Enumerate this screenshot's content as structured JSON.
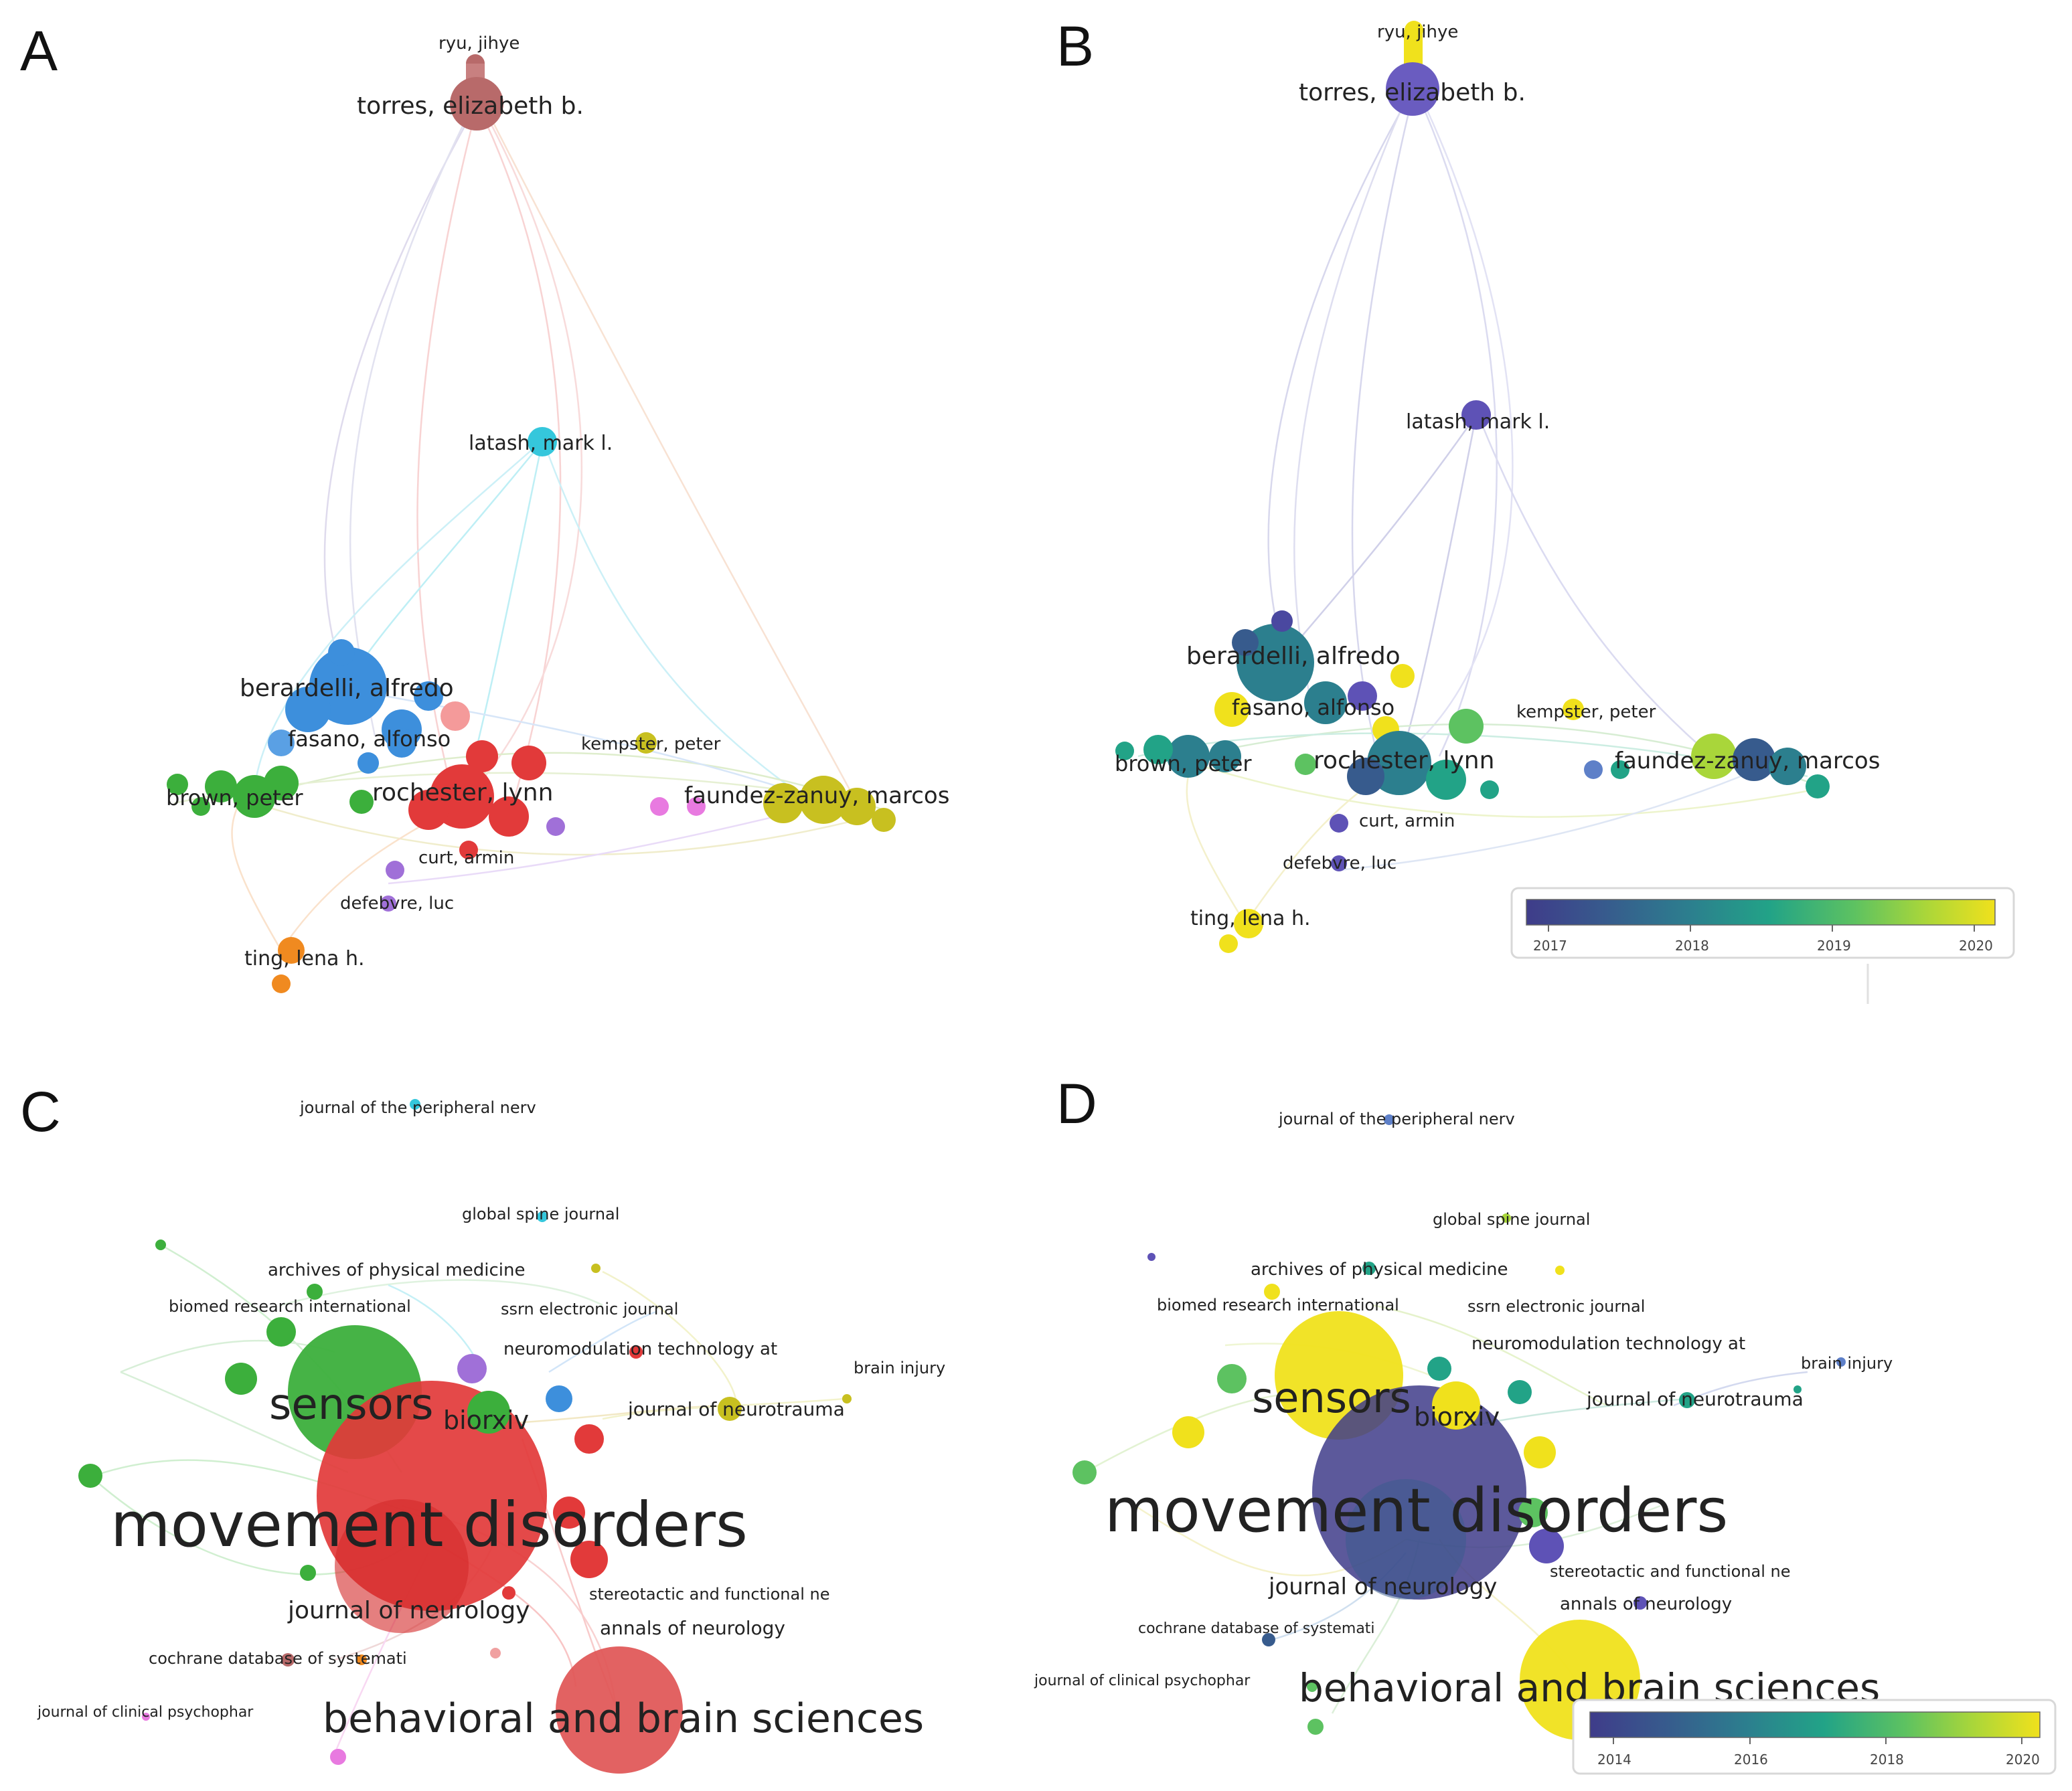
{
  "panel_letters": {
    "a": "A",
    "b": "B",
    "c": "C",
    "d": "D"
  },
  "panels": {
    "a": {
      "labels": [
        "ryu, jihye",
        "torres, elizabeth b.",
        "latash, mark l.",
        "berardelli, alfredo",
        "fasano, alfonso",
        "kempster, peter",
        "brown, peter",
        "rochester, lynn",
        "faundez-zanuy, marcos",
        "curt, armin",
        "defebvre, luc",
        "ting, lena h."
      ]
    },
    "b": {
      "labels": [
        "ryu, jihye",
        "torres, elizabeth b.",
        "latash, mark l.",
        "berardelli, alfredo",
        "fasano, alfonso",
        "kempster, peter",
        "brown, peter",
        "rochester, lynn",
        "faundez-zanuy, marcos",
        "curt, armin",
        "defebvre, luc",
        "ting, lena h."
      ],
      "colorbar": {
        "ticks": [
          "2017",
          "2018",
          "2019",
          "2020"
        ]
      }
    },
    "c": {
      "labels": [
        "journal of the peripheral nerv",
        "global spine journal",
        "archives of physical medicine",
        "biomed research international",
        "ssrn electronic journal",
        "neuromodulation technology at",
        "brain injury",
        "sensors",
        "biorxiv",
        "journal of neurotrauma",
        "movement disorders",
        "stereotactic and functional ne",
        "journal of neurology",
        "annals of neurology",
        "cochrane database of systemati",
        "journal of clinical psychophar",
        "behavioral and brain sciences"
      ]
    },
    "d": {
      "labels": [
        "journal of the peripheral nerv",
        "global spine journal",
        "archives of physical medicine",
        "biomed research international",
        "ssrn electronic journal",
        "neuromodulation technology at",
        "brain injury",
        "sensors",
        "journal of neurotrauma",
        "biorxiv",
        "movement disorders",
        "stereotactic and functional ne",
        "journal of neurology",
        "annals of neurology",
        "cochrane database of systemati",
        "journal of clinical psychophar",
        "behavioral and brain sciences"
      ],
      "colorbar": {
        "ticks": [
          "2014",
          "2016",
          "2018",
          "2020"
        ]
      }
    }
  },
  "colors": {
    "cluster_brown": "#b86a6a",
    "cluster_cyan": "#35c7dc",
    "cluster_blue": "#3d8fdc",
    "cluster_green": "#3caf3c",
    "cluster_red": "#e23a3a",
    "cluster_yellow": "#c8c020",
    "cluster_purple": "#a070d8",
    "cluster_pink": "#e87ae0",
    "cluster_orange": "#f08a20",
    "viridis": [
      "#3f3c8a",
      "#375b8d",
      "#2c7f8e",
      "#22a387",
      "#5dc261",
      "#a9d63a",
      "#f0e11c"
    ]
  }
}
